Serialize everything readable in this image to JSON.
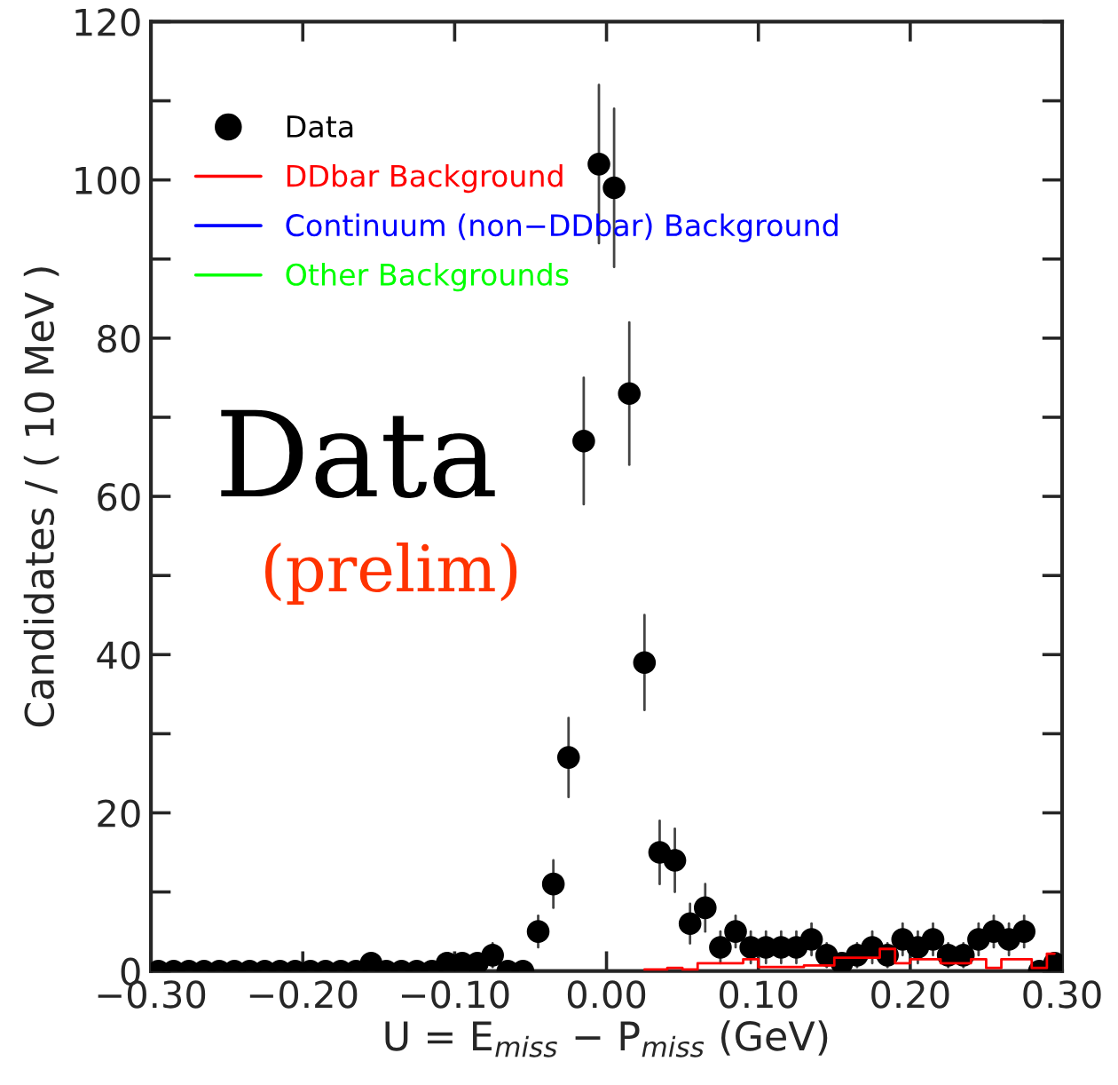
{
  "chart_data": {
    "type": "scatter",
    "xlabel": "U = E$_{miss}$ − P$_{miss}$ (GeV)",
    "ylabel": "Candidates / ( 10 MeV )",
    "xlim": [
      -0.3,
      0.3
    ],
    "ylim": [
      0,
      120
    ],
    "xticks": [
      {
        "value": -0.3,
        "label": "−0.30"
      },
      {
        "value": -0.2,
        "label": "−0.20"
      },
      {
        "value": -0.1,
        "label": "−0.10"
      },
      {
        "value": 0,
        "label": "0.00"
      },
      {
        "value": 0.1,
        "label": "0.10"
      },
      {
        "value": 0.2,
        "label": "0.20"
      },
      {
        "value": 0.3,
        "label": "0.30"
      }
    ],
    "yticks": [
      0,
      {
        "value": 10,
        "label": null
      },
      20,
      {
        "value": 30,
        "label": null
      },
      40,
      {
        "value": 50,
        "label": null
      },
      60,
      {
        "value": 70,
        "label": null
      },
      80,
      {
        "value": 90,
        "label": null
      },
      100,
      {
        "value": 110,
        "label": null
      },
      120
    ],
    "legend": "top left",
    "grid": false,
    "series": [
      {
        "name": "Data",
        "color": "#000000",
        "marker": "circle",
        "x": [
          -0.295,
          -0.285,
          -0.275,
          -0.265,
          -0.255,
          -0.245,
          -0.235,
          -0.225,
          -0.215,
          -0.205,
          -0.195,
          -0.185,
          -0.175,
          -0.165,
          -0.155,
          -0.145,
          -0.135,
          -0.125,
          -0.115,
          -0.105,
          -0.095,
          -0.085,
          -0.075,
          -0.065,
          -0.055,
          -0.045,
          -0.035,
          -0.025,
          -0.015,
          -0.005,
          0.005,
          0.015,
          0.025,
          0.035,
          0.045,
          0.055,
          0.065,
          0.075,
          0.085,
          0.095,
          0.105,
          0.115,
          0.125,
          0.135,
          0.145,
          0.155,
          0.165,
          0.175,
          0.185,
          0.195,
          0.205,
          0.215,
          0.225,
          0.235,
          0.245,
          0.255,
          0.265,
          0.275,
          0.285,
          0.295
        ],
        "values": [
          0,
          0,
          0,
          0,
          0,
          0,
          0,
          0,
          0,
          0,
          0,
          0,
          0,
          0,
          1,
          0,
          0,
          0,
          0,
          1,
          1,
          1,
          2,
          0,
          0,
          5,
          11,
          27,
          67,
          102,
          99,
          73,
          39,
          15,
          14,
          6,
          8,
          3,
          5,
          3,
          3,
          3,
          3,
          4,
          2,
          1,
          2,
          3,
          2,
          4,
          3,
          4,
          2,
          2,
          4,
          5,
          4,
          5,
          0,
          1
        ],
        "errors": [
          null,
          null,
          null,
          null,
          null,
          null,
          null,
          null,
          null,
          null,
          null,
          null,
          null,
          null,
          null,
          null,
          null,
          null,
          null,
          null,
          null,
          null,
          1.5,
          null,
          null,
          2,
          3,
          5,
          8,
          10,
          10,
          9,
          6,
          4,
          4,
          2.5,
          3,
          2,
          2,
          2,
          2,
          2,
          2,
          2,
          1.5,
          null,
          1.5,
          2,
          1.5,
          2,
          2,
          2,
          1.5,
          1.5,
          2,
          2,
          2,
          2,
          null,
          null
        ]
      },
      {
        "name": "DDbar Background",
        "type": "step",
        "color": "#ff0000",
        "x": [
          0.025,
          0.035,
          0.045,
          0.055,
          0.065,
          0.075,
          0.085,
          0.095,
          0.105,
          0.115,
          0.125,
          0.135,
          0.145,
          0.155,
          0.165,
          0.175,
          0.185,
          0.195,
          0.205,
          0.215,
          0.225,
          0.235,
          0.245,
          0.255,
          0.265,
          0.275,
          0.285,
          0.295
        ],
        "values": [
          0.2,
          0.2,
          0.4,
          0.2,
          1,
          1,
          1,
          1.5,
          0.5,
          0.5,
          0.5,
          0.7,
          0.7,
          1.7,
          1.7,
          1.7,
          2.8,
          1,
          1.5,
          1.5,
          1,
          1,
          1.5,
          0.4,
          1.5,
          1.5,
          0.4,
          2.2
        ]
      },
      {
        "name": "Continuum (non−DDbar) Background",
        "type": "step",
        "color": "#0000ff"
      },
      {
        "name": "Other Backgrounds",
        "type": "step",
        "color": "#00ff00"
      }
    ],
    "annotations": [
      "Data",
      "(prelim)"
    ]
  }
}
